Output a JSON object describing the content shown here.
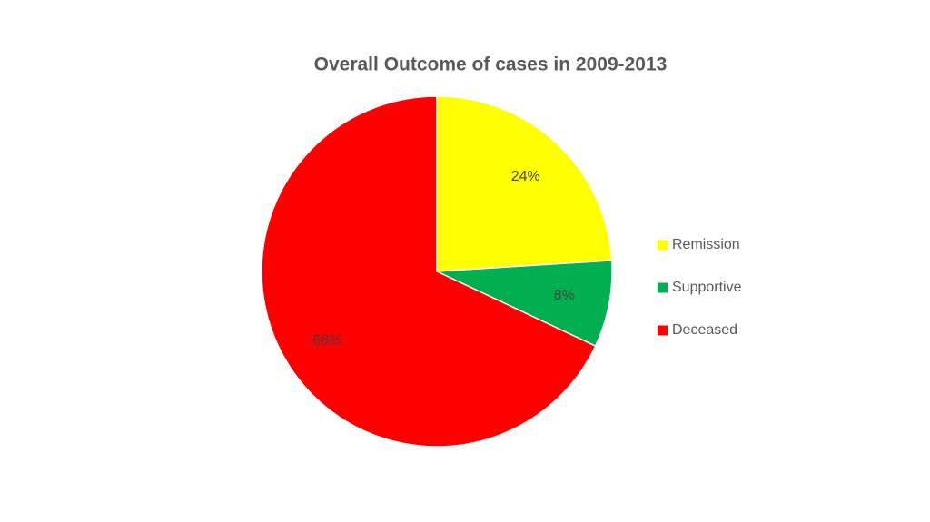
{
  "chart_data": {
    "type": "pie",
    "title": "Overall Outcome of cases in 2009-2013",
    "categories": [
      "Remission",
      "Supportive",
      "Deceased"
    ],
    "values": [
      24,
      8,
      68
    ],
    "value_labels": [
      "24%",
      "8%",
      "68%"
    ],
    "colors": [
      "#ffff00",
      "#00b050",
      "#ff0000"
    ],
    "legend": "right"
  }
}
